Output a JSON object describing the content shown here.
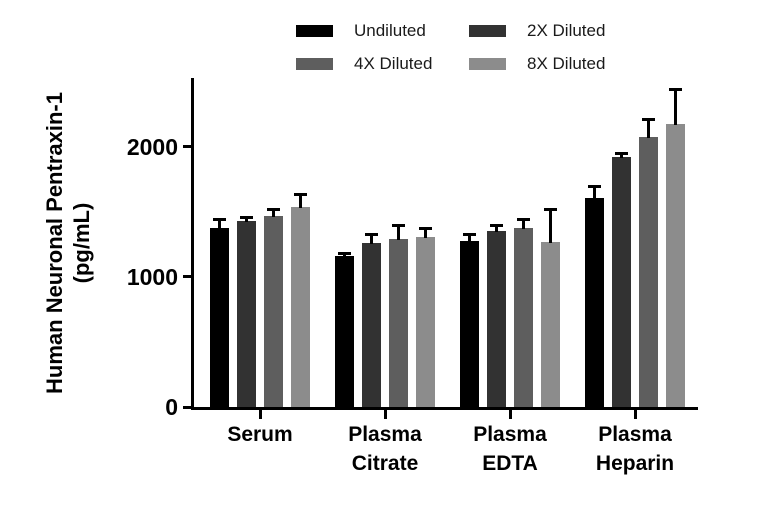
{
  "chart_data": {
    "type": "bar",
    "title": "",
    "ylabel": [
      "Human Neuronal Pentraxin-1",
      "(pg/mL)"
    ],
    "xlabel": "",
    "categories": [
      [
        "Serum"
      ],
      [
        "Plasma",
        "Citrate"
      ],
      [
        "Plasma",
        "EDTA"
      ],
      [
        "Plasma",
        "Heparin"
      ]
    ],
    "series": [
      {
        "name": "Undiluted",
        "color": "#000000",
        "values": [
          1380,
          1160,
          1280,
          1610
        ],
        "errors": [
          75,
          30,
          55,
          100
        ]
      },
      {
        "name": "2X Diluted",
        "color": "#323232",
        "values": [
          1430,
          1260,
          1350,
          1920
        ],
        "errors": [
          40,
          75,
          60,
          40
        ]
      },
      {
        "name": "4X Diluted",
        "color": "#5e5e5e",
        "values": [
          1470,
          1290,
          1380,
          2080
        ],
        "errors": [
          60,
          120,
          75,
          145
        ]
      },
      {
        "name": "8X Diluted",
        "color": "#8c8c8c",
        "values": [
          1540,
          1310,
          1270,
          2180
        ],
        "errors": [
          105,
          75,
          260,
          275
        ]
      }
    ],
    "y_ticks": [
      0,
      1000,
      2000
    ],
    "ylim": [
      0,
      2530
    ],
    "grid": false,
    "legend_position": "top",
    "axis_color": "#000000",
    "error_bar_color": "#000000"
  }
}
